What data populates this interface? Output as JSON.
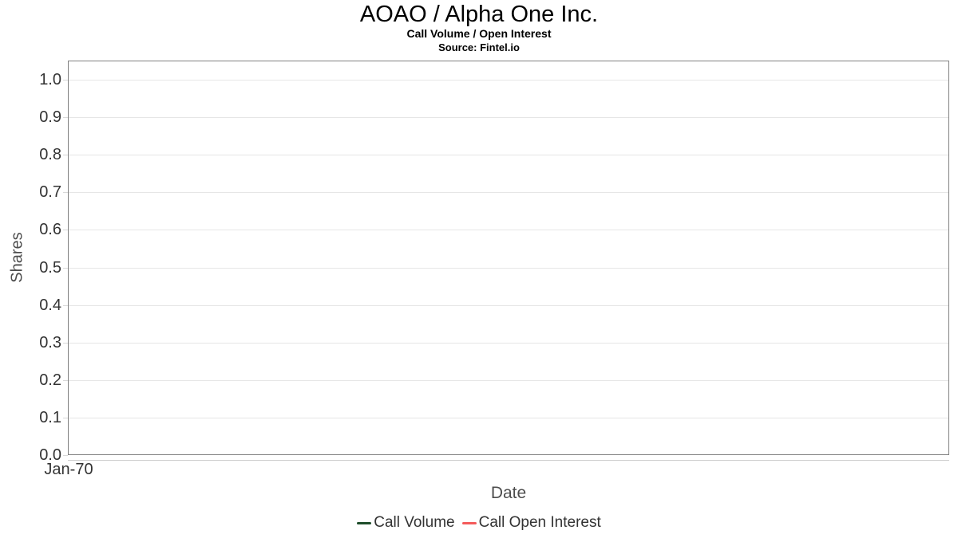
{
  "chart_data": {
    "type": "line",
    "title": "AOAO / Alpha One Inc.",
    "subtitle": "Call Volume / Open Interest",
    "source_note": "Source: Fintel.io",
    "xlabel": "Date",
    "ylabel": "Shares",
    "categories": [
      "Jan-70"
    ],
    "y_ticks": [
      "1.0",
      "0.9",
      "0.8",
      "0.7",
      "0.6",
      "0.5",
      "0.4",
      "0.3",
      "0.2",
      "0.1",
      "0.0"
    ],
    "ylim": [
      0.0,
      1.05
    ],
    "grid": true,
    "legend_position": "bottom",
    "series": [
      {
        "name": "Call Volume",
        "color": "#1e4d2b",
        "values": []
      },
      {
        "name": "Call Open Interest",
        "color": "#f45b5b",
        "values": []
      }
    ]
  },
  "colors": {
    "grid_line": "#e6e6e6",
    "plot_border": "#808080",
    "axis_line": "#cccccc",
    "tick_mark": "#d8d8d8",
    "tick_label": "#333333",
    "axis_title": "#4d4d4d",
    "legend_text": "#333333"
  }
}
